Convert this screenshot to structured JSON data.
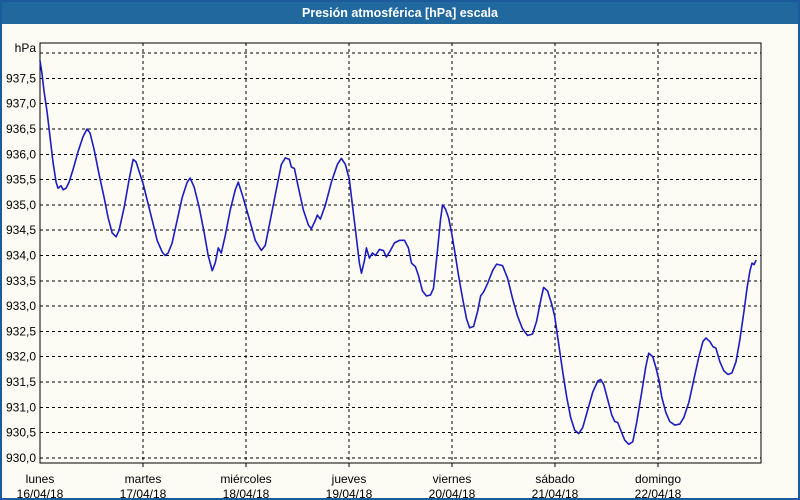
{
  "window": {
    "title": "Presión atmosférica [hPa] escala"
  },
  "colors": {
    "titlebar_bg": "#21689f",
    "frame_border": "#1c5a9c",
    "window_bg": "#fcfcf4",
    "line": "#1c1cc0",
    "grid": "#000000",
    "label_text": "#000000",
    "title_text": "#ffffff"
  },
  "chart_data": {
    "type": "line",
    "title": "Presión atmosférica [hPa] escala",
    "xlabel": "",
    "ylabel": "hPa",
    "grid": true,
    "legend": "none",
    "y_axis": {
      "unit_label": "hPa",
      "render_min": 929.9,
      "render_max": 938.2,
      "gridline_step": 0.5,
      "gridline_min": 930.0,
      "gridline_max": 938.0,
      "ticks": [
        {
          "label": "937,5",
          "value": 937.5
        },
        {
          "label": "937,0",
          "value": 937.0
        },
        {
          "label": "936,5",
          "value": 936.5
        },
        {
          "label": "936,0",
          "value": 936.0
        },
        {
          "label": "935,5",
          "value": 935.5
        },
        {
          "label": "935,0",
          "value": 935.0
        },
        {
          "label": "934,5",
          "value": 934.5
        },
        {
          "label": "934,0",
          "value": 934.0
        },
        {
          "label": "933,5",
          "value": 933.5
        },
        {
          "label": "933,0",
          "value": 933.0
        },
        {
          "label": "932,5",
          "value": 932.5
        },
        {
          "label": "932,0",
          "value": 932.0
        },
        {
          "label": "931,5",
          "value": 931.5
        },
        {
          "label": "931,0",
          "value": 931.0
        },
        {
          "label": "930,5",
          "value": 930.5
        },
        {
          "label": "930,0",
          "value": 930.0
        }
      ]
    },
    "x_axis": {
      "span_days": 7,
      "days": [
        {
          "name": "lunes",
          "date": "16/04/18"
        },
        {
          "name": "martes",
          "date": "17/04/18"
        },
        {
          "name": "miércoles",
          "date": "18/04/18"
        },
        {
          "name": "jueves",
          "date": "19/04/18"
        },
        {
          "name": "viernes",
          "date": "20/04/18"
        },
        {
          "name": "sábado",
          "date": "21/04/18"
        },
        {
          "name": "domingo",
          "date": "22/04/18"
        }
      ]
    },
    "series": [
      {
        "name": "Presión atmosférica [hPa]",
        "points": [
          [
            0.0,
            937.85
          ],
          [
            0.019,
            937.6
          ],
          [
            0.039,
            937.25
          ],
          [
            0.068,
            936.85
          ],
          [
            0.097,
            936.35
          ],
          [
            0.126,
            935.85
          ],
          [
            0.156,
            935.45
          ],
          [
            0.175,
            935.33
          ],
          [
            0.204,
            935.38
          ],
          [
            0.224,
            935.3
          ],
          [
            0.253,
            935.33
          ],
          [
            0.282,
            935.45
          ],
          [
            0.321,
            935.7
          ],
          [
            0.369,
            936.05
          ],
          [
            0.418,
            936.35
          ],
          [
            0.457,
            936.5
          ],
          [
            0.486,
            936.42
          ],
          [
            0.525,
            936.1
          ],
          [
            0.574,
            935.6
          ],
          [
            0.622,
            935.15
          ],
          [
            0.661,
            934.75
          ],
          [
            0.7,
            934.45
          ],
          [
            0.739,
            934.37
          ],
          [
            0.768,
            934.5
          ],
          [
            0.817,
            934.95
          ],
          [
            0.865,
            935.5
          ],
          [
            0.904,
            935.9
          ],
          [
            0.933,
            935.85
          ],
          [
            0.972,
            935.6
          ],
          [
            1.001,
            935.42
          ],
          [
            1.04,
            935.1
          ],
          [
            1.089,
            934.7
          ],
          [
            1.137,
            934.3
          ],
          [
            1.186,
            934.07
          ],
          [
            1.215,
            934.0
          ],
          [
            1.244,
            934.05
          ],
          [
            1.283,
            934.25
          ],
          [
            1.332,
            934.7
          ],
          [
            1.381,
            935.15
          ],
          [
            1.429,
            935.45
          ],
          [
            1.458,
            935.53
          ],
          [
            1.497,
            935.35
          ],
          [
            1.546,
            934.95
          ],
          [
            1.594,
            934.45
          ],
          [
            1.633,
            934.0
          ],
          [
            1.672,
            933.7
          ],
          [
            1.701,
            933.85
          ],
          [
            1.731,
            934.15
          ],
          [
            1.76,
            934.05
          ],
          [
            1.799,
            934.4
          ],
          [
            1.847,
            934.9
          ],
          [
            1.896,
            935.3
          ],
          [
            1.925,
            935.45
          ],
          [
            1.964,
            935.2
          ],
          [
            2.003,
            934.93
          ],
          [
            2.042,
            934.65
          ],
          [
            2.09,
            934.3
          ],
          [
            2.149,
            934.1
          ],
          [
            2.187,
            934.2
          ],
          [
            2.236,
            934.7
          ],
          [
            2.294,
            935.3
          ],
          [
            2.343,
            935.8
          ],
          [
            2.382,
            935.93
          ],
          [
            2.421,
            935.9
          ],
          [
            2.44,
            935.75
          ],
          [
            2.47,
            935.72
          ],
          [
            2.508,
            935.35
          ],
          [
            2.557,
            934.9
          ],
          [
            2.606,
            934.6
          ],
          [
            2.635,
            934.53
          ],
          [
            2.674,
            934.7
          ],
          [
            2.693,
            934.8
          ],
          [
            2.722,
            934.72
          ],
          [
            2.771,
            935.0
          ],
          [
            2.829,
            935.45
          ],
          [
            2.887,
            935.8
          ],
          [
            2.926,
            935.92
          ],
          [
            2.965,
            935.8
          ],
          [
            3.004,
            935.5
          ],
          [
            3.033,
            935.0
          ],
          [
            3.072,
            934.35
          ],
          [
            3.101,
            933.85
          ],
          [
            3.121,
            933.65
          ],
          [
            3.15,
            933.9
          ],
          [
            3.169,
            934.15
          ],
          [
            3.198,
            933.95
          ],
          [
            3.227,
            934.05
          ],
          [
            3.257,
            934.0
          ],
          [
            3.295,
            934.12
          ],
          [
            3.334,
            934.1
          ],
          [
            3.363,
            933.97
          ],
          [
            3.402,
            934.1
          ],
          [
            3.441,
            934.25
          ],
          [
            3.49,
            934.3
          ],
          [
            3.539,
            934.3
          ],
          [
            3.577,
            934.15
          ],
          [
            3.607,
            933.85
          ],
          [
            3.645,
            933.78
          ],
          [
            3.675,
            933.6
          ],
          [
            3.713,
            933.3
          ],
          [
            3.752,
            933.2
          ],
          [
            3.791,
            933.22
          ],
          [
            3.82,
            933.35
          ],
          [
            3.859,
            934.1
          ],
          [
            3.888,
            934.7
          ],
          [
            3.908,
            935.0
          ],
          [
            3.937,
            934.92
          ],
          [
            3.966,
            934.75
          ],
          [
            3.996,
            934.45
          ],
          [
            4.025,
            934.1
          ],
          [
            4.064,
            933.6
          ],
          [
            4.103,
            933.15
          ],
          [
            4.141,
            932.75
          ],
          [
            4.171,
            932.57
          ],
          [
            4.21,
            932.6
          ],
          [
            4.249,
            932.9
          ],
          [
            4.278,
            933.2
          ],
          [
            4.307,
            933.28
          ],
          [
            4.346,
            933.45
          ],
          [
            4.394,
            933.7
          ],
          [
            4.433,
            933.83
          ],
          [
            4.491,
            933.8
          ],
          [
            4.54,
            933.55
          ],
          [
            4.588,
            933.15
          ],
          [
            4.637,
            932.8
          ],
          [
            4.685,
            932.55
          ],
          [
            4.734,
            932.42
          ],
          [
            4.782,
            932.45
          ],
          [
            4.821,
            932.7
          ],
          [
            4.86,
            933.1
          ],
          [
            4.889,
            933.37
          ],
          [
            4.928,
            933.3
          ],
          [
            4.967,
            933.05
          ],
          [
            4.997,
            932.8
          ],
          [
            5.036,
            932.25
          ],
          [
            5.075,
            931.7
          ],
          [
            5.114,
            931.2
          ],
          [
            5.152,
            930.8
          ],
          [
            5.191,
            930.55
          ],
          [
            5.23,
            930.48
          ],
          [
            5.269,
            930.6
          ],
          [
            5.318,
            930.95
          ],
          [
            5.366,
            931.3
          ],
          [
            5.415,
            931.52
          ],
          [
            5.444,
            931.55
          ],
          [
            5.473,
            931.45
          ],
          [
            5.512,
            931.15
          ],
          [
            5.551,
            930.85
          ],
          [
            5.58,
            930.72
          ],
          [
            5.609,
            930.7
          ],
          [
            5.638,
            930.55
          ],
          [
            5.677,
            930.35
          ],
          [
            5.716,
            930.27
          ],
          [
            5.755,
            930.32
          ],
          [
            5.793,
            930.7
          ],
          [
            5.842,
            931.3
          ],
          [
            5.881,
            931.8
          ],
          [
            5.91,
            932.07
          ],
          [
            5.949,
            932.0
          ],
          [
            5.978,
            931.8
          ],
          [
            6.008,
            931.55
          ],
          [
            6.037,
            931.2
          ],
          [
            6.076,
            930.9
          ],
          [
            6.114,
            930.72
          ],
          [
            6.163,
            930.65
          ],
          [
            6.212,
            930.67
          ],
          [
            6.251,
            930.8
          ],
          [
            6.3,
            931.1
          ],
          [
            6.348,
            931.55
          ],
          [
            6.397,
            932.0
          ],
          [
            6.436,
            932.3
          ],
          [
            6.465,
            932.37
          ],
          [
            6.504,
            932.3
          ],
          [
            6.533,
            932.2
          ],
          [
            6.562,
            932.17
          ],
          [
            6.601,
            931.9
          ],
          [
            6.64,
            931.72
          ],
          [
            6.679,
            931.65
          ],
          [
            6.718,
            931.68
          ],
          [
            6.757,
            931.9
          ],
          [
            6.796,
            932.35
          ],
          [
            6.835,
            932.9
          ],
          [
            6.864,
            933.35
          ],
          [
            6.893,
            933.7
          ],
          [
            6.913,
            933.85
          ],
          [
            6.932,
            933.82
          ],
          [
            6.951,
            933.9
          ]
        ]
      }
    ]
  }
}
